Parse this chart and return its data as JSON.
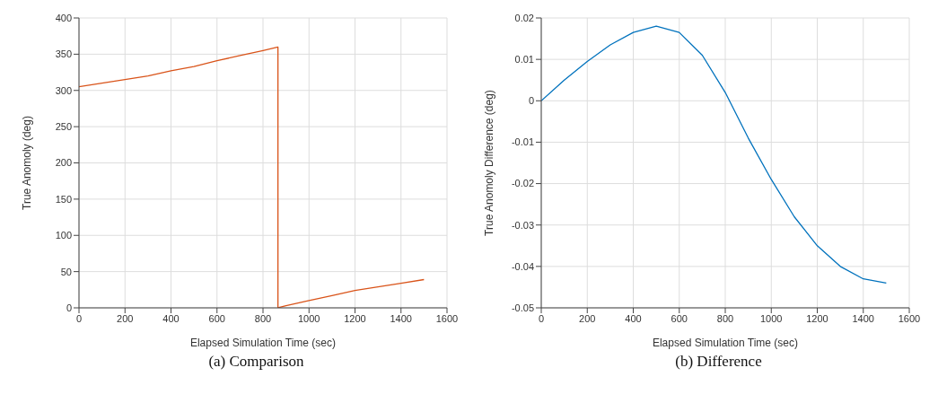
{
  "chart_data": [
    {
      "type": "line",
      "xlabel": "Elapsed Simulation Time (sec)",
      "ylabel": "True Anomoly (deg)",
      "xlim": [
        0,
        1600
      ],
      "xticks": [
        0,
        200,
        400,
        600,
        800,
        1000,
        1200,
        1400,
        1600
      ],
      "ylim": [
        0,
        400
      ],
      "yticks": [
        0,
        50,
        100,
        150,
        200,
        250,
        300,
        350,
        400
      ],
      "grid": true,
      "marker": "none",
      "annotations": [
        "(a) Comparison"
      ],
      "series": [
        {
          "color": "#d95319",
          "x": [
            0,
            100,
            200,
            300,
            400,
            500,
            600,
            700,
            800,
            865,
            865,
            900,
            1000,
            1100,
            1200,
            1300,
            1400,
            1500
          ],
          "values": [
            305,
            310,
            315,
            320,
            327,
            333,
            341,
            348,
            355,
            360,
            0,
            3,
            10,
            17,
            24,
            29,
            34,
            39
          ]
        }
      ]
    },
    {
      "type": "line",
      "xlabel": "Elapsed Simulation Time (sec)",
      "ylabel": "True Anomoly Difference (deg)",
      "xlim": [
        0,
        1600
      ],
      "xticks": [
        0,
        200,
        400,
        600,
        800,
        1000,
        1200,
        1400,
        1600
      ],
      "ylim": [
        -0.05,
        0.02
      ],
      "yticks": [
        -0.05,
        -0.04,
        -0.03,
        -0.02,
        -0.01,
        0,
        0.01,
        0.02
      ],
      "grid": true,
      "marker": "none",
      "annotations": [
        "(b) Difference"
      ],
      "series": [
        {
          "color": "#0072bd",
          "x": [
            0,
            100,
            200,
            300,
            400,
            500,
            600,
            700,
            800,
            900,
            1000,
            1100,
            1200,
            1300,
            1400,
            1500
          ],
          "values": [
            0,
            0.005,
            0.0095,
            0.0135,
            0.0165,
            0.018,
            0.0165,
            0.011,
            0.002,
            -0.009,
            -0.019,
            -0.028,
            -0.035,
            -0.04,
            -0.043,
            -0.044
          ]
        }
      ]
    }
  ]
}
